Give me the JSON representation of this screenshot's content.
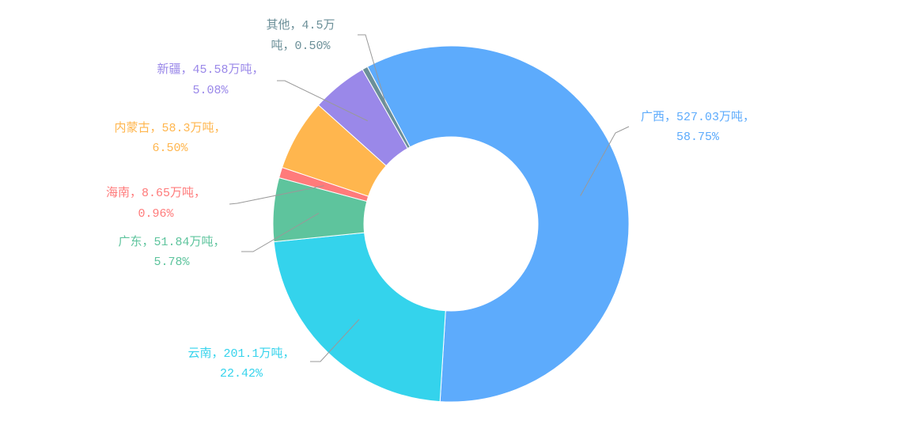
{
  "chart_data": {
    "type": "pie",
    "categories": [
      "广西",
      "云南",
      "广东",
      "海南",
      "内蒙古",
      "新疆",
      "其他"
    ],
    "values": [
      527.03,
      201.1,
      51.84,
      8.65,
      58.3,
      45.58,
      4.5
    ],
    "value_labels": [
      [
        "广西，527.03万吨，",
        "58.75%"
      ],
      [
        "云南，201.1万吨，",
        "22.42%"
      ],
      [
        "广东，51.84万吨，",
        "5.78%"
      ],
      [
        "海南，8.65万吨，",
        "0.96%"
      ],
      [
        "内蒙古，58.3万吨，",
        "6.50%"
      ],
      [
        "新疆，45.58万吨，",
        "5.08%"
      ],
      [
        "其他，4.5万",
        "吨，0.50%"
      ]
    ],
    "colors": [
      "#5dabfc",
      "#34d3ec",
      "#5ec49d",
      "#ff7b7b",
      "#ffb64e",
      "#9a88e9",
      "#6b8f98"
    ]
  }
}
